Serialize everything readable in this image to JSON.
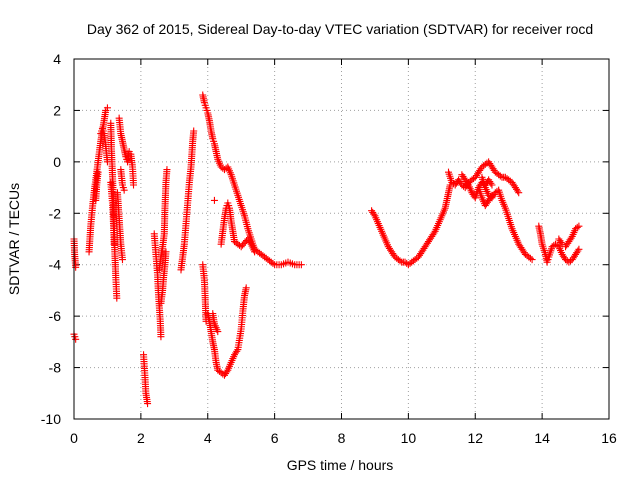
{
  "chart_data": {
    "type": "scatter",
    "title": "Day 362 of 2015, Sidereal Day-to-day VTEC variation (SDTVAR) for receiver rocd",
    "xlabel": "GPS time / hours",
    "ylabel": "SDTVAR / TECUs",
    "xlim": [
      0,
      16
    ],
    "ylim": [
      -10,
      4
    ],
    "xticks": [
      "0",
      "2",
      "4",
      "6",
      "8",
      "10",
      "12",
      "14",
      "16"
    ],
    "yticks": [
      "4",
      "2",
      "0",
      "-2",
      "-4",
      "-6",
      "-8",
      "-10"
    ],
    "grid": true,
    "marker": "plus",
    "color": "#ff0000",
    "series": [
      {
        "name": "SDTVAR",
        "polylines": [
          [
            [
              0.0,
              -3.0
            ],
            [
              0.02,
              -3.6
            ],
            [
              0.05,
              -4.1
            ]
          ],
          [
            [
              0.0,
              -6.7
            ],
            [
              0.05,
              -6.9
            ]
          ],
          [
            [
              0.45,
              -3.5
            ],
            [
              0.5,
              -2.5
            ],
            [
              0.55,
              -1.8
            ],
            [
              0.6,
              -1.2
            ],
            [
              0.65,
              -0.7
            ],
            [
              0.7,
              -0.2
            ],
            [
              0.75,
              0.3
            ],
            [
              0.8,
              0.8
            ],
            [
              0.85,
              1.2
            ],
            [
              0.9,
              1.6
            ],
            [
              0.95,
              2.0
            ],
            [
              1.0,
              2.1
            ]
          ],
          [
            [
              0.65,
              -1.5
            ],
            [
              0.68,
              -0.9
            ],
            [
              0.72,
              -0.4
            ]
          ],
          [
            [
              0.8,
              1.1
            ],
            [
              0.85,
              1.3
            ],
            [
              0.9,
              1.1
            ],
            [
              0.95,
              0.6
            ],
            [
              1.0,
              0.0
            ]
          ],
          [
            [
              1.1,
              1.5
            ],
            [
              1.12,
              0.5
            ],
            [
              1.15,
              -0.5
            ],
            [
              1.18,
              -1.5
            ],
            [
              1.2,
              -2.5
            ],
            [
              1.22,
              -3.5
            ],
            [
              1.25,
              -4.5
            ],
            [
              1.28,
              -5.3
            ]
          ],
          [
            [
              1.1,
              -0.8
            ],
            [
              1.15,
              -1.6
            ],
            [
              1.18,
              -2.4
            ],
            [
              1.2,
              -3.2
            ]
          ],
          [
            [
              1.3,
              -1.2
            ],
            [
              1.35,
              -2.2
            ],
            [
              1.4,
              -3.2
            ],
            [
              1.45,
              -3.8
            ]
          ],
          [
            [
              1.35,
              1.7
            ],
            [
              1.4,
              1.1
            ],
            [
              1.45,
              0.8
            ],
            [
              1.5,
              0.5
            ],
            [
              1.55,
              0.2
            ],
            [
              1.6,
              0.0
            ],
            [
              1.65,
              0.4
            ],
            [
              1.7,
              0.3
            ],
            [
              1.75,
              -0.2
            ],
            [
              1.78,
              -0.9
            ]
          ],
          [
            [
              1.4,
              -0.3
            ],
            [
              1.45,
              -0.9
            ],
            [
              1.5,
              -1.1
            ]
          ],
          [
            [
              2.08,
              -7.5
            ],
            [
              2.12,
              -8.3
            ],
            [
              2.15,
              -9.0
            ],
            [
              2.2,
              -9.4
            ]
          ],
          [
            [
              2.4,
              -2.8
            ],
            [
              2.45,
              -3.6
            ],
            [
              2.5,
              -4.4
            ],
            [
              2.52,
              -5.0
            ],
            [
              2.55,
              -5.6
            ],
            [
              2.58,
              -6.2
            ],
            [
              2.6,
              -6.8
            ]
          ],
          [
            [
              2.55,
              -4.2
            ],
            [
              2.6,
              -3.7
            ],
            [
              2.65,
              -3.3
            ],
            [
              2.7,
              -2.8
            ],
            [
              2.72,
              -1.8
            ],
            [
              2.75,
              -0.8
            ],
            [
              2.78,
              -0.3
            ]
          ],
          [
            [
              2.6,
              -5.5
            ],
            [
              2.65,
              -5.0
            ],
            [
              2.68,
              -4.5
            ],
            [
              2.72,
              -4.0
            ],
            [
              2.75,
              -3.5
            ]
          ],
          [
            [
              3.2,
              -4.2
            ],
            [
              3.3,
              -3.2
            ],
            [
              3.35,
              -2.4
            ],
            [
              3.4,
              -1.6
            ],
            [
              3.45,
              -0.8
            ],
            [
              3.5,
              -0.2
            ],
            [
              3.55,
              0.8
            ],
            [
              3.58,
              1.2
            ]
          ],
          [
            [
              3.85,
              -4.0
            ],
            [
              3.9,
              -4.6
            ],
            [
              3.92,
              -5.2
            ],
            [
              3.95,
              -6.2
            ]
          ],
          [
            [
              3.85,
              2.6
            ],
            [
              3.9,
              2.3
            ],
            [
              3.95,
              2.1
            ],
            [
              4.0,
              1.9
            ],
            [
              4.05,
              1.6
            ],
            [
              4.1,
              1.2
            ],
            [
              4.15,
              0.9
            ],
            [
              4.2,
              0.7
            ],
            [
              4.25,
              0.4
            ],
            [
              4.3,
              0.1
            ],
            [
              4.4,
              -0.2
            ],
            [
              4.5,
              -0.3
            ],
            [
              4.6,
              -0.2
            ],
            [
              4.7,
              -0.5
            ],
            [
              4.8,
              -0.9
            ],
            [
              4.9,
              -1.3
            ],
            [
              5.0,
              -1.7
            ],
            [
              5.1,
              -2.1
            ],
            [
              5.2,
              -2.6
            ],
            [
              5.3,
              -3.0
            ],
            [
              5.4,
              -3.4
            ],
            [
              5.6,
              -3.6
            ],
            [
              5.8,
              -3.8
            ],
            [
              6.0,
              -4.0
            ],
            [
              6.2,
              -4.0
            ],
            [
              6.4,
              -3.9
            ],
            [
              6.6,
              -4.0
            ],
            [
              6.8,
              -4.0
            ]
          ],
          [
            [
              4.0,
              -5.9
            ],
            [
              4.05,
              -6.2
            ],
            [
              4.1,
              -6.6
            ],
            [
              4.15,
              -7.0
            ],
            [
              4.2,
              -7.3
            ],
            [
              4.25,
              -7.8
            ],
            [
              4.3,
              -8.1
            ],
            [
              4.4,
              -8.2
            ],
            [
              4.5,
              -8.3
            ],
            [
              4.6,
              -8.1
            ],
            [
              4.7,
              -7.8
            ],
            [
              4.8,
              -7.5
            ],
            [
              4.9,
              -7.3
            ],
            [
              5.0,
              -6.5
            ],
            [
              5.05,
              -5.8
            ],
            [
              5.1,
              -5.2
            ],
            [
              5.15,
              -4.9
            ]
          ],
          [
            [
              4.15,
              -5.9
            ],
            [
              4.2,
              -6.3
            ],
            [
              4.3,
              -6.6
            ]
          ],
          [
            [
              4.2,
              -1.5
            ]
          ],
          [
            [
              4.4,
              -3.2
            ],
            [
              4.45,
              -2.7
            ],
            [
              4.5,
              -2.2
            ],
            [
              4.55,
              -1.8
            ],
            [
              4.6,
              -1.6
            ],
            [
              4.65,
              -1.8
            ],
            [
              4.7,
              -2.3
            ],
            [
              4.75,
              -2.7
            ],
            [
              4.8,
              -3.1
            ],
            [
              5.0,
              -3.3
            ],
            [
              5.2,
              -3.0
            ],
            [
              5.3,
              -3.2
            ],
            [
              5.4,
              -3.5
            ]
          ],
          [
            [
              8.9,
              -1.9
            ],
            [
              9.0,
              -2.1
            ],
            [
              9.1,
              -2.4
            ],
            [
              9.2,
              -2.7
            ],
            [
              9.3,
              -3.0
            ],
            [
              9.4,
              -3.3
            ],
            [
              9.5,
              -3.5
            ],
            [
              9.6,
              -3.7
            ],
            [
              9.7,
              -3.8
            ],
            [
              9.8,
              -3.9
            ],
            [
              9.9,
              -3.9
            ],
            [
              10.0,
              -4.0
            ],
            [
              10.1,
              -3.9
            ],
            [
              10.2,
              -3.8
            ],
            [
              10.3,
              -3.7
            ],
            [
              10.4,
              -3.5
            ],
            [
              10.5,
              -3.3
            ],
            [
              10.6,
              -3.1
            ],
            [
              10.7,
              -2.9
            ],
            [
              10.8,
              -2.7
            ],
            [
              10.9,
              -2.4
            ],
            [
              11.0,
              -2.1
            ],
            [
              11.1,
              -1.8
            ],
            [
              11.15,
              -1.5
            ],
            [
              11.2,
              -1.2
            ],
            [
              11.25,
              -0.9
            ]
          ],
          [
            [
              11.2,
              -0.4
            ],
            [
              11.3,
              -0.8
            ],
            [
              11.4,
              -0.9
            ],
            [
              11.5,
              -0.7
            ],
            [
              11.6,
              -0.9
            ],
            [
              11.7,
              -1.0
            ],
            [
              11.8,
              -0.8
            ],
            [
              11.9,
              -0.7
            ],
            [
              12.0,
              -0.6
            ],
            [
              12.1,
              -0.4
            ],
            [
              12.2,
              -0.2
            ],
            [
              12.3,
              -0.1
            ],
            [
              12.4,
              0.0
            ],
            [
              12.5,
              -0.2
            ],
            [
              12.6,
              -0.4
            ],
            [
              12.7,
              -0.5
            ],
            [
              12.8,
              -0.6
            ],
            [
              12.9,
              -0.6
            ],
            [
              13.0,
              -0.7
            ],
            [
              13.1,
              -0.8
            ],
            [
              13.2,
              -1.0
            ],
            [
              13.3,
              -1.2
            ]
          ],
          [
            [
              11.6,
              -0.5
            ],
            [
              11.7,
              -0.7
            ],
            [
              11.8,
              -0.9
            ],
            [
              11.9,
              -1.2
            ],
            [
              12.0,
              -1.4
            ],
            [
              12.1,
              -1.0
            ],
            [
              12.2,
              -0.8
            ],
            [
              12.3,
              -0.9
            ],
            [
              12.4,
              -0.7
            ],
            [
              12.5,
              -0.9
            ]
          ],
          [
            [
              12.2,
              -0.6
            ],
            [
              12.3,
              -1.0
            ],
            [
              12.4,
              -1.3
            ],
            [
              12.5,
              -1.4
            ],
            [
              12.6,
              -1.2
            ],
            [
              12.7,
              -1.1
            ],
            [
              12.8,
              -1.5
            ],
            [
              12.9,
              -1.8
            ],
            [
              13.0,
              -2.2
            ],
            [
              13.1,
              -2.6
            ],
            [
              13.2,
              -2.9
            ],
            [
              13.3,
              -3.2
            ],
            [
              13.4,
              -3.4
            ],
            [
              13.5,
              -3.6
            ],
            [
              13.6,
              -3.7
            ],
            [
              13.7,
              -3.8
            ]
          ],
          [
            [
              12.1,
              -1.0
            ],
            [
              12.2,
              -1.4
            ],
            [
              12.3,
              -1.7
            ],
            [
              12.4,
              -1.5
            ],
            [
              12.5,
              -1.3
            ]
          ],
          [
            [
              13.9,
              -2.5
            ],
            [
              13.95,
              -2.8
            ],
            [
              14.0,
              -3.2
            ],
            [
              14.1,
              -3.6
            ],
            [
              14.15,
              -3.9
            ],
            [
              14.2,
              -3.7
            ],
            [
              14.3,
              -3.3
            ],
            [
              14.4,
              -3.2
            ],
            [
              14.5,
              -3.3
            ],
            [
              14.6,
              -3.6
            ],
            [
              14.7,
              -3.8
            ],
            [
              14.8,
              -3.9
            ],
            [
              14.9,
              -3.8
            ],
            [
              15.0,
              -3.6
            ],
            [
              15.1,
              -3.4
            ]
          ],
          [
            [
              14.5,
              -3.0
            ],
            [
              14.6,
              -3.2
            ]
          ],
          [
            [
              14.7,
              -3.3
            ],
            [
              14.8,
              -3.1
            ],
            [
              14.9,
              -2.9
            ],
            [
              15.0,
              -2.6
            ],
            [
              15.1,
              -2.5
            ]
          ]
        ]
      }
    ]
  }
}
